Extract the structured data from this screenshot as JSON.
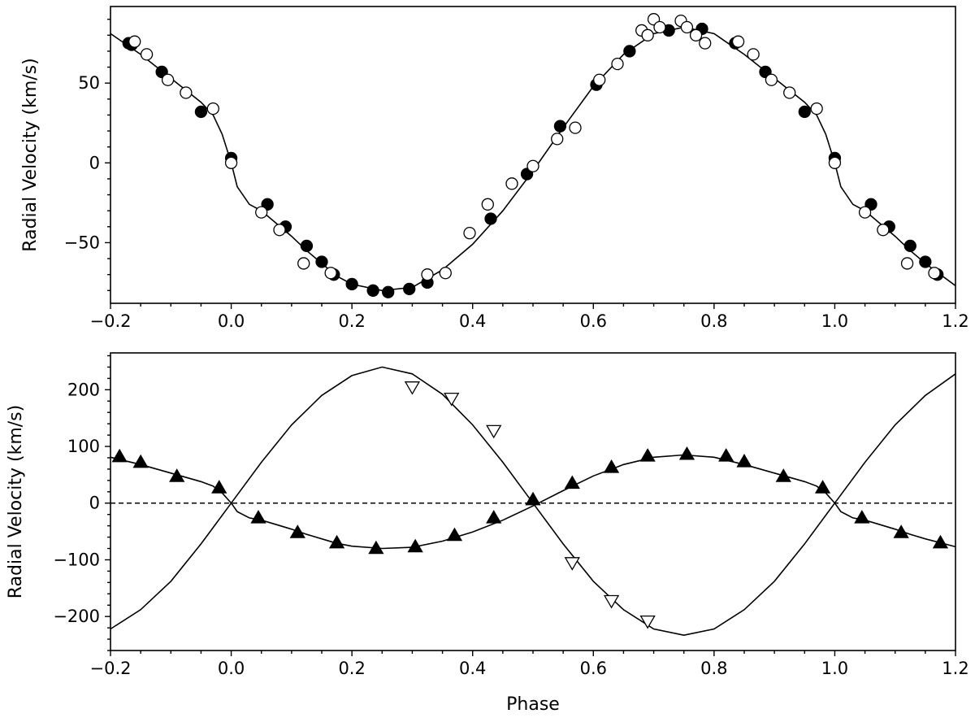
{
  "chart_data": [
    {
      "type": "scatter",
      "panel": "top",
      "xlabel": "",
      "ylabel": "Radial Velocity (km/s)",
      "xlim": [
        -0.2,
        1.2
      ],
      "ylim": [
        -88,
        98
      ],
      "xticks": [
        -0.2,
        0.0,
        0.2,
        0.4,
        0.6,
        0.8,
        1.0,
        1.2
      ],
      "xtick_labels": [
        "−0.2",
        "0.0",
        "0.2",
        "0.4",
        "0.6",
        "0.8",
        "1.0",
        "1.2"
      ],
      "yticks": [
        -50,
        0,
        50
      ],
      "ytick_labels": [
        "−50",
        "0",
        "50"
      ],
      "grid": false,
      "legend": "none",
      "series": [
        {
          "marker": "filled-circle",
          "points": [
            [
              -0.17,
              75
            ],
            [
              -0.165,
              74
            ],
            [
              -0.115,
              57
            ],
            [
              -0.05,
              32
            ],
            [
              0.0,
              3
            ],
            [
              0.06,
              -26
            ],
            [
              0.09,
              -40
            ],
            [
              0.125,
              -52
            ],
            [
              0.15,
              -62
            ],
            [
              0.17,
              -70
            ],
            [
              0.2,
              -76
            ],
            [
              0.235,
              -80
            ],
            [
              0.26,
              -81
            ],
            [
              0.295,
              -79
            ],
            [
              0.325,
              -75
            ],
            [
              0.43,
              -35
            ],
            [
              0.49,
              -7
            ],
            [
              0.545,
              23
            ],
            [
              0.605,
              49
            ],
            [
              0.66,
              70
            ],
            [
              0.725,
              83
            ],
            [
              0.78,
              84
            ],
            [
              0.835,
              75
            ],
            [
              0.885,
              57
            ],
            [
              0.95,
              32
            ],
            [
              1.0,
              3
            ],
            [
              1.06,
              -26
            ],
            [
              1.09,
              -40
            ],
            [
              1.125,
              -52
            ],
            [
              1.15,
              -62
            ],
            [
              1.17,
              -70
            ]
          ]
        },
        {
          "marker": "open-circle",
          "points": [
            [
              -0.16,
              76
            ],
            [
              -0.14,
              68
            ],
            [
              -0.105,
              52
            ],
            [
              -0.075,
              44
            ],
            [
              -0.03,
              34
            ],
            [
              0.0,
              0
            ],
            [
              0.05,
              -31
            ],
            [
              0.08,
              -42
            ],
            [
              0.12,
              -63
            ],
            [
              0.165,
              -69
            ],
            [
              0.325,
              -70
            ],
            [
              0.355,
              -69
            ],
            [
              0.395,
              -44
            ],
            [
              0.425,
              -26
            ],
            [
              0.465,
              -13
            ],
            [
              0.5,
              -2
            ],
            [
              0.54,
              15
            ],
            [
              0.57,
              22
            ],
            [
              0.61,
              52
            ],
            [
              0.64,
              62
            ],
            [
              0.68,
              83
            ],
            [
              0.69,
              80
            ],
            [
              0.7,
              90
            ],
            [
              0.71,
              85
            ],
            [
              0.745,
              89
            ],
            [
              0.755,
              85
            ],
            [
              0.77,
              80
            ],
            [
              0.785,
              75
            ],
            [
              0.84,
              76
            ],
            [
              0.865,
              68
            ],
            [
              0.895,
              52
            ],
            [
              0.925,
              44
            ],
            [
              0.97,
              34
            ],
            [
              1.0,
              0
            ],
            [
              1.05,
              -31
            ],
            [
              1.08,
              -42
            ],
            [
              1.12,
              -63
            ],
            [
              1.165,
              -69
            ]
          ]
        }
      ],
      "curve": {
        "style": "solid",
        "points": [
          [
            -0.2,
            81
          ],
          [
            -0.15,
            68
          ],
          [
            -0.1,
            53
          ],
          [
            -0.05,
            38
          ],
          [
            -0.03,
            30
          ],
          [
            -0.015,
            18
          ],
          [
            0.0,
            0
          ],
          [
            0.01,
            -15
          ],
          [
            0.03,
            -26
          ],
          [
            0.05,
            -30
          ],
          [
            0.075,
            -38
          ],
          [
            0.1,
            -46
          ],
          [
            0.125,
            -55
          ],
          [
            0.15,
            -63
          ],
          [
            0.175,
            -71
          ],
          [
            0.2,
            -76
          ],
          [
            0.25,
            -80
          ],
          [
            0.3,
            -78
          ],
          [
            0.35,
            -67
          ],
          [
            0.4,
            -51
          ],
          [
            0.45,
            -30
          ],
          [
            0.5,
            -5
          ],
          [
            0.55,
            22
          ],
          [
            0.6,
            48
          ],
          [
            0.65,
            68
          ],
          [
            0.7,
            81
          ],
          [
            0.75,
            85
          ],
          [
            0.8,
            81
          ],
          [
            0.85,
            68
          ],
          [
            0.9,
            53
          ],
          [
            0.95,
            38
          ],
          [
            0.97,
            30
          ],
          [
            0.985,
            18
          ],
          [
            1.0,
            0
          ],
          [
            1.01,
            -15
          ],
          [
            1.03,
            -26
          ],
          [
            1.05,
            -30
          ],
          [
            1.075,
            -38
          ],
          [
            1.1,
            -46
          ],
          [
            1.125,
            -55
          ],
          [
            1.15,
            -63
          ],
          [
            1.175,
            -70
          ],
          [
            1.2,
            -77
          ]
        ]
      }
    },
    {
      "type": "scatter",
      "panel": "bottom",
      "xlabel": "Phase",
      "ylabel": "Radial Velocity (km/s)",
      "xlim": [
        -0.2,
        1.2
      ],
      "ylim": [
        -260,
        265
      ],
      "xticks": [
        -0.2,
        0.0,
        0.2,
        0.4,
        0.6,
        0.8,
        1.0,
        1.2
      ],
      "xtick_labels": [
        "−0.2",
        "0.0",
        "0.2",
        "0.4",
        "0.6",
        "0.8",
        "1.0",
        "1.2"
      ],
      "yticks": [
        -200,
        -100,
        0,
        100,
        200
      ],
      "ytick_labels": [
        "−200",
        "−100",
        "0",
        "100",
        "200"
      ],
      "grid": false,
      "legend": "none",
      "series": [
        {
          "marker": "filled-triangle-up",
          "points": [
            [
              -0.185,
              82
            ],
            [
              -0.15,
              72
            ],
            [
              -0.09,
              47
            ],
            [
              -0.02,
              27
            ],
            [
              0.045,
              -26
            ],
            [
              0.11,
              -52
            ],
            [
              0.175,
              -70
            ],
            [
              0.24,
              -80
            ],
            [
              0.305,
              -77
            ],
            [
              0.37,
              -57
            ],
            [
              0.435,
              -26
            ],
            [
              0.5,
              6
            ],
            [
              0.565,
              35
            ],
            [
              0.63,
              63
            ],
            [
              0.69,
              83
            ],
            [
              0.755,
              86
            ],
            [
              0.82,
              83
            ],
            [
              0.85,
              73
            ],
            [
              0.915,
              47
            ],
            [
              0.98,
              27
            ],
            [
              1.045,
              -26
            ],
            [
              1.11,
              -52
            ],
            [
              1.175,
              -70
            ]
          ]
        },
        {
          "marker": "open-triangle-down",
          "points": [
            [
              0.3,
              205
            ],
            [
              0.365,
              185
            ],
            [
              0.435,
              128
            ],
            [
              0.565,
              -105
            ],
            [
              0.63,
              -172
            ],
            [
              0.69,
              -208
            ]
          ]
        }
      ],
      "curves": [
        {
          "name": "",
          "style": "solid",
          "points": [
            [
              -0.2,
              -222
            ],
            [
              -0.15,
              -188
            ],
            [
              -0.1,
              -138
            ],
            [
              -0.05,
              -72
            ],
            [
              0.0,
              0
            ],
            [
              0.05,
              72
            ],
            [
              0.1,
              138
            ],
            [
              0.15,
              190
            ],
            [
              0.2,
              225
            ],
            [
              0.25,
              240
            ],
            [
              0.3,
              228
            ],
            [
              0.35,
              192
            ],
            [
              0.4,
              138
            ],
            [
              0.45,
              72
            ],
            [
              0.5,
              0
            ],
            [
              0.55,
              -72
            ],
            [
              0.6,
              -138
            ],
            [
              0.65,
              -188
            ],
            [
              0.7,
              -222
            ],
            [
              0.75,
              -233
            ],
            [
              0.8,
              -222
            ],
            [
              0.85,
              -188
            ],
            [
              0.9,
              -138
            ],
            [
              0.95,
              -72
            ],
            [
              1.0,
              0
            ],
            [
              1.05,
              72
            ],
            [
              1.1,
              138
            ],
            [
              1.15,
              190
            ],
            [
              1.2,
              228
            ]
          ]
        },
        {
          "name": "",
          "style": "solid",
          "points": [
            [
              -0.2,
              81
            ],
            [
              -0.15,
              68
            ],
            [
              -0.1,
              53
            ],
            [
              -0.05,
              38
            ],
            [
              -0.03,
              30
            ],
            [
              -0.015,
              18
            ],
            [
              0.0,
              0
            ],
            [
              0.01,
              -15
            ],
            [
              0.03,
              -26
            ],
            [
              0.05,
              -30
            ],
            [
              0.075,
              -38
            ],
            [
              0.1,
              -46
            ],
            [
              0.125,
              -55
            ],
            [
              0.15,
              -63
            ],
            [
              0.175,
              -71
            ],
            [
              0.2,
              -76
            ],
            [
              0.25,
              -80
            ],
            [
              0.3,
              -78
            ],
            [
              0.35,
              -67
            ],
            [
              0.4,
              -51
            ],
            [
              0.45,
              -30
            ],
            [
              0.5,
              -5
            ],
            [
              0.55,
              22
            ],
            [
              0.6,
              48
            ],
            [
              0.65,
              68
            ],
            [
              0.7,
              81
            ],
            [
              0.75,
              85
            ],
            [
              0.8,
              81
            ],
            [
              0.85,
              68
            ],
            [
              0.9,
              53
            ],
            [
              0.95,
              38
            ],
            [
              0.97,
              30
            ],
            [
              0.985,
              18
            ],
            [
              1.0,
              0
            ],
            [
              1.01,
              -15
            ],
            [
              1.03,
              -26
            ],
            [
              1.05,
              -30
            ],
            [
              1.075,
              -38
            ],
            [
              1.1,
              -46
            ],
            [
              1.125,
              -55
            ],
            [
              1.15,
              -63
            ],
            [
              1.175,
              -70
            ],
            [
              1.2,
              -77
            ]
          ]
        },
        {
          "name": "",
          "style": "dashed",
          "points": [
            [
              -0.2,
              0
            ],
            [
              1.2,
              0
            ]
          ]
        }
      ]
    }
  ]
}
